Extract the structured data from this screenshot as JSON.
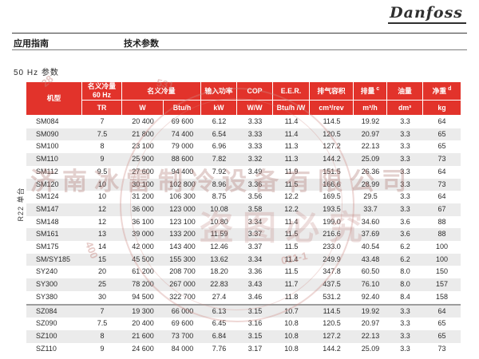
{
  "page": {
    "logo": "Danfoss",
    "nav_left": "应用指南",
    "nav_right": "技术参数",
    "section_title": "50 Hz 参数"
  },
  "table": {
    "group_label": "R22 单台",
    "header": {
      "model": "机型",
      "cap60_line1": "名义冷量",
      "cap60_line2": "60 Hz",
      "cap_title": "名义冷量",
      "power_title": "输入功率",
      "cop_title": "COP",
      "eer_title": "E.E.R.",
      "disp_title": "排气容积",
      "flow_title": "排量",
      "flow_sup": "c",
      "oil_title": "油量",
      "weight_title": "净重",
      "weight_sup": "d",
      "unit_tr": "TR",
      "unit_w": "W",
      "unit_btuh": "Btu/h",
      "unit_kw": "kW",
      "unit_ww": "W/W",
      "unit_btuhw": "Btu/h /W",
      "unit_cm3rev": "cm³/rev",
      "unit_m3h": "m³/h",
      "unit_dm3": "dm³",
      "unit_kg": "kg"
    },
    "groups": [
      {
        "name": "SM-SY",
        "shade_start": "white",
        "rows": [
          [
            "SM084",
            "7",
            "20 400",
            "69 600",
            "6.12",
            "3.33",
            "11.4",
            "114.5",
            "19.92",
            "3.3",
            "64"
          ],
          [
            "SM090",
            "7.5",
            "21 800",
            "74 400",
            "6.54",
            "3.33",
            "11.4",
            "120.5",
            "20.97",
            "3.3",
            "65"
          ],
          [
            "SM100",
            "8",
            "23 100",
            "79 000",
            "6.96",
            "3.33",
            "11.3",
            "127.2",
            "22.13",
            "3.3",
            "65"
          ],
          [
            "SM110",
            "9",
            "25 900",
            "88 600",
            "7.82",
            "3.32",
            "11.3",
            "144.2",
            "25.09",
            "3.3",
            "73"
          ],
          [
            "SM112",
            "9.5",
            "27 600",
            "94 400",
            "7.92",
            "3.49",
            "11.9",
            "151.5",
            "26.36",
            "3.3",
            "64"
          ],
          [
            "SM120",
            "10",
            "30 100",
            "102 800",
            "8.96",
            "3.36",
            "11.5",
            "166.6",
            "28.99",
            "3.3",
            "73"
          ],
          [
            "SM124",
            "10",
            "31 200",
            "106 300",
            "8.75",
            "3.56",
            "12.2",
            "169.5",
            "29.5",
            "3.3",
            "64"
          ],
          [
            "SM147",
            "12",
            "36 000",
            "123 000",
            "10.08",
            "3.58",
            "12.2",
            "193.5",
            "33.7",
            "3.3",
            "67"
          ],
          [
            "SM148",
            "12",
            "36 100",
            "123 100",
            "10.80",
            "3.34",
            "11.4",
            "199.0",
            "34.60",
            "3.6",
            "88"
          ],
          [
            "SM161",
            "13",
            "39 000",
            "133 200",
            "11.59",
            "3.37",
            "11.5",
            "216.6",
            "37.69",
            "3.6",
            "88"
          ],
          [
            "SM175",
            "14",
            "42 000",
            "143 400",
            "12.46",
            "3.37",
            "11.5",
            "233.0",
            "40.54",
            "6.2",
            "100"
          ],
          [
            "SM/SY185",
            "15",
            "45 500",
            "155 300",
            "13.62",
            "3.34",
            "11.4",
            "249.9",
            "43.48",
            "6.2",
            "100"
          ],
          [
            "SY240",
            "20",
            "61 200",
            "208 700",
            "18.20",
            "3.36",
            "11.5",
            "347.8",
            "60.50",
            "8.0",
            "150"
          ],
          [
            "SY300",
            "25",
            "78 200",
            "267 000",
            "22.83",
            "3.43",
            "11.7",
            "437.5",
            "76.10",
            "8.0",
            "157"
          ],
          [
            "SY380",
            "30",
            "94 500",
            "322 700",
            "27.4",
            "3.46",
            "11.8",
            "531.2",
            "92.40",
            "8.4",
            "158"
          ]
        ]
      },
      {
        "name": "SZ",
        "shade_start": "gray",
        "rows": [
          [
            "SZ084",
            "7",
            "19 300",
            "66 000",
            "6.13",
            "3.15",
            "10.7",
            "114.5",
            "19.92",
            "3.3",
            "64"
          ],
          [
            "SZ090",
            "7.5",
            "20 400",
            "69 600",
            "6.45",
            "3.16",
            "10.8",
            "120.5",
            "20.97",
            "3.3",
            "65"
          ],
          [
            "SZ100",
            "8",
            "21 600",
            "73 700",
            "6.84",
            "3.15",
            "10.8",
            "127.2",
            "22.13",
            "3.3",
            "65"
          ],
          [
            "SZ110",
            "9",
            "24 600",
            "84 000",
            "7.76",
            "3.17",
            "10.8",
            "144.2",
            "25.09",
            "3.3",
            "73"
          ]
        ]
      }
    ]
  },
  "watermark": {
    "company": "济南冰雷制冷设备有限公司",
    "notice": "盗图必究",
    "numbers": [
      "28",
      "531",
      "400",
      "031-1"
    ]
  }
}
